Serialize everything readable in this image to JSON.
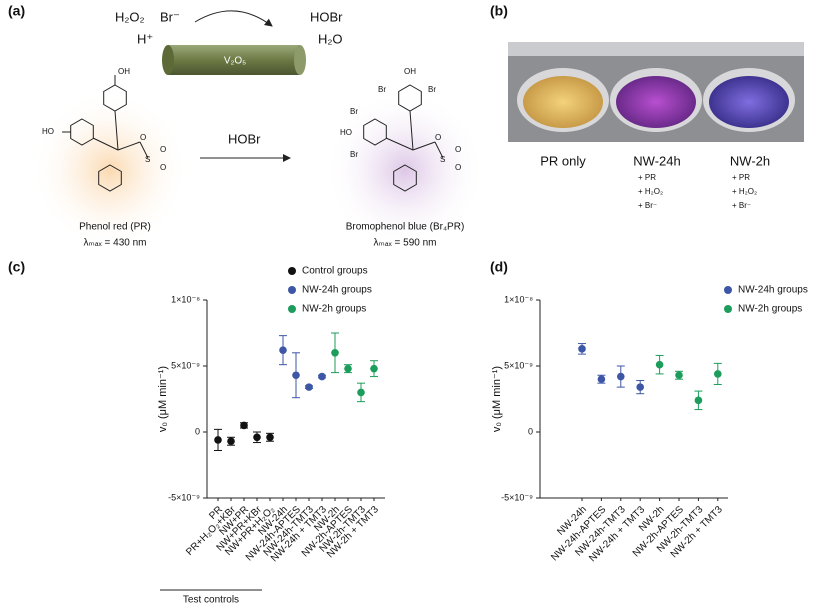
{
  "panel_a": {
    "label": "(a)",
    "reagents": [
      "H₂O₂",
      "Br⁻",
      "H⁺"
    ],
    "products": [
      "HOBr",
      "H₂O"
    ],
    "catalyst": "V₂O₅",
    "arrow_label": "HOBr",
    "pr_atoms": [
      "OH",
      "HO",
      "O",
      "S",
      "O",
      "O"
    ],
    "br4pr_atoms": [
      "OH",
      "Br",
      "Br",
      "Br",
      "HO",
      "Br",
      "O",
      "S",
      "O",
      "O"
    ],
    "reactant_name": "Phenol red (PR)",
    "reactant_lambda": "λₘₐₓ = 430 nm",
    "product_name": "Bromophenol blue (Br₄PR)",
    "product_lambda": "λₘₐₓ = 590 nm"
  },
  "panel_b": {
    "label": "(b)",
    "wells": [
      {
        "title": "PR only"
      },
      {
        "title": "NW-24h",
        "additives": [
          "+ PR",
          "+ H₂O₂",
          "+ Br⁻"
        ]
      },
      {
        "title": "NW-2h",
        "additives": [
          "+ PR",
          "+ H₂O₂",
          "+ Br⁻"
        ]
      }
    ]
  },
  "chart_data": [
    {
      "type": "errorbar",
      "panel_label": "(c)",
      "y_label": "v₀ (μM min⁻¹)",
      "categories": [
        "PR",
        "PR+H₂O₂+KBr",
        "NW+PR",
        "NW+PR+KBr",
        "NW+PR+H₂O₂",
        "NW-24h",
        "NW-24h-APTES",
        "NW-24h-TMT3",
        "NW-24h + TMT3",
        "NW-2h",
        "NW-2h-APTES",
        "NW-2h-TMT3",
        "NW-2h + TMT3"
      ],
      "x_group_label": "Test controls",
      "ylim": [
        -5e-09,
        1e-08
      ],
      "yticks": [
        {
          "value": 1e-08,
          "label": "1×10⁻⁸"
        },
        {
          "value": 5e-09,
          "label": "5×10⁻⁹"
        },
        0,
        {
          "value": -5e-09,
          "label": "-5×10⁻⁹"
        }
      ],
      "legend": "upper right",
      "series": [
        {
          "name": "Control groups",
          "color": "#111111",
          "values": [
            -6e-10,
            -7e-10,
            5e-10,
            -4e-10,
            -4e-10,
            null,
            null,
            null,
            null,
            null,
            null,
            null,
            null
          ],
          "errors": [
            8e-10,
            3e-10,
            2e-10,
            4e-10,
            3e-10,
            null,
            null,
            null,
            null,
            null,
            null,
            null,
            null
          ]
        },
        {
          "name": "NW-24h groups",
          "color": "#3e56a6",
          "values": [
            null,
            null,
            null,
            null,
            null,
            6.2e-09,
            4.3e-09,
            3.4e-09,
            4.2e-09,
            null,
            null,
            null,
            null
          ],
          "errors": [
            null,
            null,
            null,
            null,
            null,
            1.1e-09,
            1.7e-09,
            1e-10,
            1e-10,
            null,
            null,
            null,
            null
          ]
        },
        {
          "name": "NW-2h groups",
          "color": "#1c9d5b",
          "values": [
            null,
            null,
            null,
            null,
            null,
            null,
            null,
            null,
            null,
            6e-09,
            4.8e-09,
            3e-09,
            4.8e-09
          ],
          "errors": [
            null,
            null,
            null,
            null,
            null,
            null,
            null,
            null,
            null,
            1.5e-09,
            3e-10,
            7e-10,
            6e-10
          ]
        }
      ]
    },
    {
      "type": "errorbar",
      "panel_label": "(d)",
      "y_label": "v₀ (μM min⁻¹)",
      "categories": [
        "NW-24h",
        "NW-24h-APTES",
        "NW-24h-TMT3",
        "NW-24h + TMT3",
        "NW-2h",
        "NW-2h-APTES",
        "NW-2h-TMT3",
        "NW-2h + TMT3"
      ],
      "ylim": [
        -5e-09,
        1e-08
      ],
      "yticks": [
        {
          "value": 1e-08,
          "label": "1×10⁻⁸"
        },
        {
          "value": 5e-09,
          "label": "5×10⁻⁹"
        },
        0,
        {
          "value": -5e-09,
          "label": "-5×10⁻⁹"
        }
      ],
      "legend": "upper right",
      "series": [
        {
          "name": "NW-24h groups",
          "color": "#3e56a6",
          "values": [
            6.3e-09,
            4e-09,
            4.2e-09,
            3.4e-09,
            null,
            null,
            null,
            null
          ],
          "errors": [
            4e-10,
            3e-10,
            8e-10,
            5e-10,
            null,
            null,
            null,
            null
          ]
        },
        {
          "name": "NW-2h groups",
          "color": "#1c9d5b",
          "values": [
            null,
            null,
            null,
            null,
            5.1e-09,
            4.3e-09,
            2.4e-09,
            4.4e-09
          ],
          "errors": [
            null,
            null,
            null,
            null,
            7e-10,
            3e-10,
            7e-10,
            8e-10
          ]
        }
      ]
    }
  ]
}
